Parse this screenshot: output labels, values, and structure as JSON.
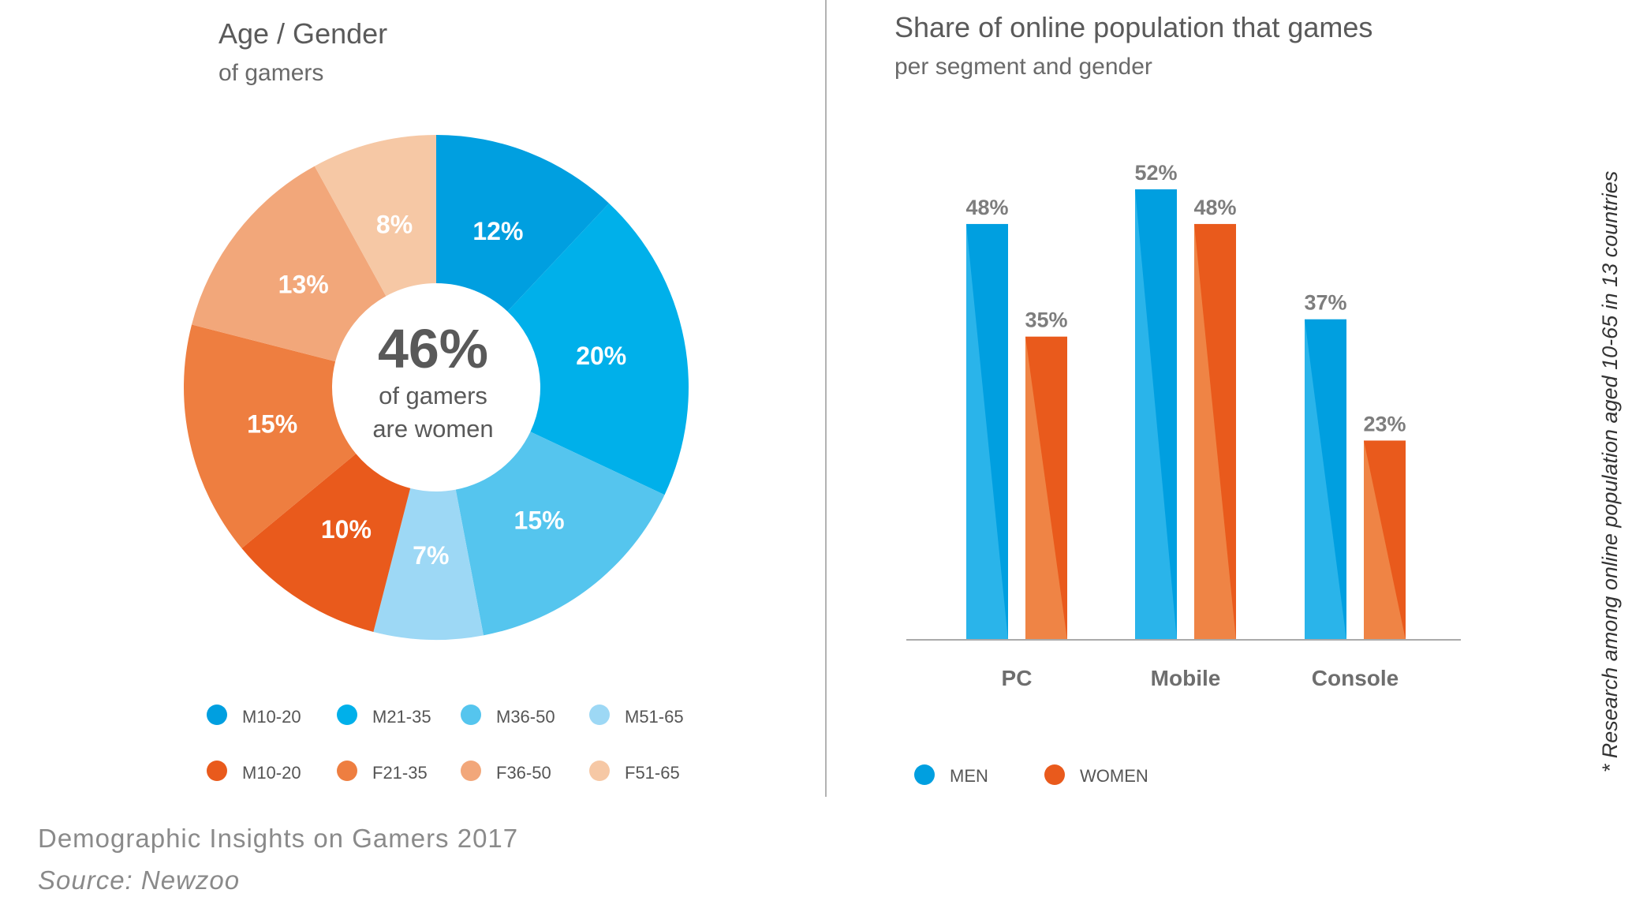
{
  "chart_data": [
    {
      "type": "pie",
      "title": "Age / Gender",
      "subtitle": "of gamers",
      "center": {
        "big": "46%",
        "line1": "of gamers",
        "line2": "are women"
      },
      "slices": [
        {
          "name": "M10-20",
          "value": 12,
          "label": "12%",
          "color": "#009fe0"
        },
        {
          "name": "M21-35",
          "value": 20,
          "label": "20%",
          "color": "#00b0ea"
        },
        {
          "name": "M36-50",
          "value": 15,
          "label": "15%",
          "color": "#55c5ee"
        },
        {
          "name": "M51-65",
          "value": 7,
          "label": "7%",
          "color": "#9dd8f5"
        },
        {
          "name": "M10-20",
          "value": 10,
          "label": "10%",
          "color": "#e95a1c"
        },
        {
          "name": "F21-35",
          "value": 15,
          "label": "15%",
          "color": "#ee7e40"
        },
        {
          "name": "F36-50",
          "value": 13,
          "label": "13%",
          "color": "#f2a77a"
        },
        {
          "name": "F51-65",
          "value": 8,
          "label": "8%",
          "color": "#f6c8a5"
        }
      ]
    },
    {
      "type": "bar",
      "title": "Share of online population that games",
      "subtitle": "per segment and gender",
      "categories": [
        "PC",
        "Mobile",
        "Console"
      ],
      "series": [
        {
          "name": "MEN",
          "values": [
            48,
            52,
            37
          ],
          "labels": [
            "48%",
            "52%",
            "37%"
          ],
          "color": "#009fe0",
          "shade": "#2ab4ea"
        },
        {
          "name": "WOMEN",
          "values": [
            35,
            48,
            23
          ],
          "labels": [
            "35%",
            "48%",
            "23%"
          ],
          "color": "#e95a1c",
          "shade": "#ef8445"
        }
      ],
      "ylim": [
        0,
        60
      ]
    }
  ],
  "footer": {
    "line1": "Demographic Insights on Gamers 2017",
    "line2": "Source: Newzoo"
  },
  "note": "* Research among online population aged 10-65 in 13 countries"
}
